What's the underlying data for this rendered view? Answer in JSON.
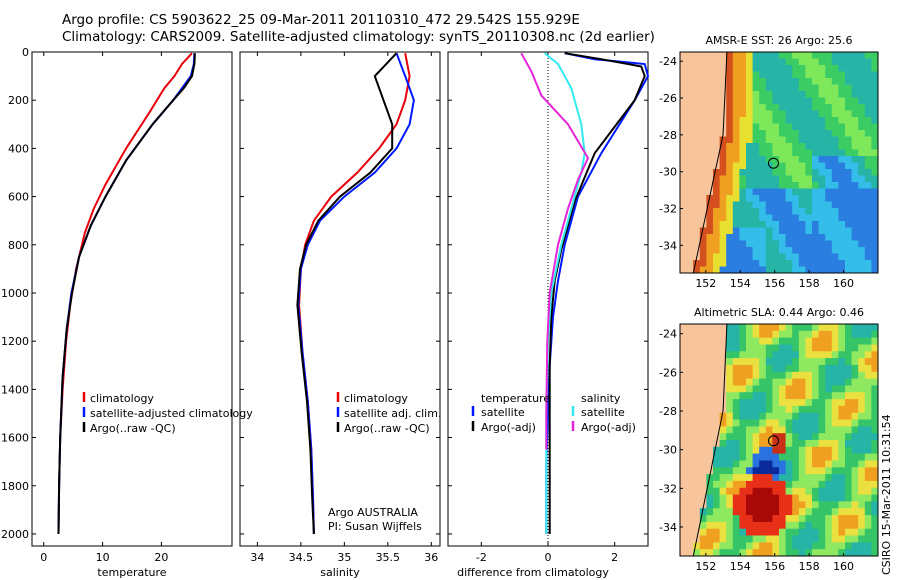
{
  "title_line1": "Argo profile: CS 5903622_25 09-Mar-2011 20110310_472 29.542S 155.929E",
  "title_line2": "Climatology: CARS2009. Satellite-adjusted climatology: synTS_20110308.nc (2d earlier)",
  "colors": {
    "red": "#e8000b",
    "blue": "#0018ff",
    "black": "#000000",
    "cyan": "#33e8ef",
    "magenta": "#e624d8",
    "land": "#f8c49c"
  },
  "chart_data": [
    {
      "type": "line",
      "panel": "temperature",
      "xlabel": "temperature",
      "xlim": [
        -2,
        32
      ],
      "ylim": [
        2050,
        0
      ],
      "xticks": [
        0,
        10,
        20
      ],
      "yticks": [
        0,
        200,
        400,
        600,
        800,
        1000,
        1200,
        1400,
        1600,
        1800,
        2000
      ],
      "legend": [
        "climatology",
        "satellite-adjusted climatology",
        "Argo(..raw -QC)"
      ],
      "series": [
        {
          "name": "climatology",
          "color": "red",
          "x": [
            25.2,
            23.5,
            22.2,
            20.5,
            18.0,
            14.0,
            10.5,
            8.5,
            7.0,
            5.5,
            4.5,
            3.8,
            3.2,
            2.8,
            2.6,
            2.5
          ],
          "y": [
            5,
            50,
            100,
            150,
            250,
            400,
            550,
            650,
            750,
            900,
            1050,
            1200,
            1400,
            1600,
            1800,
            2000
          ]
        },
        {
          "name": "satellite-adjusted climatology",
          "color": "blue",
          "x": [
            25.6,
            25.5,
            25.0,
            23.5,
            22.0,
            18.5,
            14.0,
            10.5,
            8.0,
            6.0,
            4.7,
            3.9,
            3.2,
            2.8,
            2.6,
            2.5
          ],
          "y": [
            5,
            50,
            100,
            150,
            200,
            300,
            450,
            600,
            720,
            850,
            1000,
            1150,
            1350,
            1600,
            1800,
            2000
          ]
        },
        {
          "name": "Argo(..raw -QC)",
          "color": "black",
          "x": [
            25.7,
            25.6,
            25.2,
            23.8,
            22.0,
            18.5,
            14.0,
            10.5,
            8.0,
            6.0,
            4.8,
            3.9,
            3.2,
            2.8,
            2.6,
            2.5
          ],
          "y": [
            5,
            50,
            100,
            150,
            200,
            300,
            450,
            600,
            720,
            850,
            1000,
            1150,
            1350,
            1600,
            1800,
            2000
          ]
        }
      ]
    },
    {
      "type": "line",
      "panel": "salinity",
      "xlabel": "salinity",
      "xlim": [
        33.8,
        36.1
      ],
      "ylim": [
        2050,
        0
      ],
      "xticks": [
        34,
        34.5,
        35,
        35.5,
        36
      ],
      "yticks": [],
      "legend": [
        "climatology",
        "satellite adj. clim.",
        "Argo(..raw -QC)"
      ],
      "annotation": [
        "Argo AUSTRALIA",
        "PI: Susan Wijffels"
      ],
      "series": [
        {
          "name": "climatology",
          "color": "red",
          "x": [
            35.7,
            35.75,
            35.7,
            35.6,
            35.4,
            35.15,
            34.85,
            34.65,
            34.55,
            34.5,
            34.48,
            34.52,
            34.58,
            34.62,
            34.64,
            34.65
          ],
          "y": [
            5,
            100,
            200,
            300,
            400,
            500,
            600,
            700,
            800,
            900,
            1050,
            1250,
            1450,
            1650,
            1850,
            2000
          ]
        },
        {
          "name": "satellite adj. clim.",
          "color": "blue",
          "x": [
            35.6,
            35.7,
            35.8,
            35.75,
            35.6,
            35.35,
            35.0,
            34.72,
            34.58,
            34.5,
            34.47,
            34.52,
            34.58,
            34.62,
            34.64,
            34.65
          ],
          "y": [
            5,
            100,
            200,
            300,
            400,
            500,
            600,
            700,
            800,
            900,
            1050,
            1250,
            1450,
            1650,
            1850,
            2000
          ]
        },
        {
          "name": "Argo(..raw -QC)",
          "color": "black",
          "x": [
            35.6,
            35.35,
            35.45,
            35.55,
            35.55,
            35.3,
            34.95,
            34.7,
            34.56,
            34.49,
            34.46,
            34.51,
            34.57,
            34.61,
            34.63,
            34.65
          ],
          "y": [
            5,
            100,
            200,
            300,
            400,
            500,
            600,
            700,
            800,
            900,
            1050,
            1250,
            1450,
            1650,
            1850,
            2000
          ]
        }
      ]
    },
    {
      "type": "line",
      "panel": "difference",
      "xlabel": "difference from climatology",
      "xlim": [
        -3.0,
        3.0
      ],
      "ylim": [
        2050,
        0
      ],
      "xticks": [
        -2,
        0,
        2
      ],
      "yticks": [],
      "legend": [
        "temperature",
        "satellite",
        "Argo(-adj)",
        "salinity",
        "satellite",
        "Argo(-adj)"
      ],
      "series": [
        {
          "name": "temperature satellite",
          "color": "blue",
          "x": [
            0.5,
            1.4,
            2.9,
            3.0,
            2.6,
            1.6,
            0.9,
            0.5,
            0.3,
            0.15,
            0.05,
            0.0,
            -0.05,
            -0.05,
            -0.05
          ],
          "y": [
            5,
            30,
            50,
            100,
            200,
            420,
            600,
            800,
            950,
            1100,
            1300,
            1500,
            1700,
            1900,
            2000
          ]
        },
        {
          "name": "temperature Argo(-adj)",
          "color": "black",
          "x": [
            0.5,
            1.6,
            2.8,
            2.9,
            2.6,
            1.4,
            0.8,
            0.4,
            0.2,
            0.1,
            0.05,
            0.05,
            0.05,
            0.05,
            0.05
          ],
          "y": [
            5,
            30,
            60,
            100,
            200,
            420,
            620,
            820,
            950,
            1100,
            1300,
            1500,
            1700,
            1900,
            2000
          ]
        },
        {
          "name": "salinity satellite",
          "color": "cyan",
          "x": [
            -0.1,
            0.3,
            0.7,
            1.0,
            1.1,
            1.0,
            0.7,
            0.4,
            0.1,
            0.0,
            -0.05,
            -0.05,
            -0.05
          ],
          "y": [
            5,
            50,
            150,
            300,
            420,
            500,
            650,
            800,
            1000,
            1200,
            1500,
            1800,
            2000
          ]
        },
        {
          "name": "salinity Argo(-adj)",
          "color": "magenta",
          "x": [
            -0.8,
            -0.5,
            -0.2,
            0.6,
            1.2,
            0.9,
            0.6,
            0.3,
            0.05,
            -0.02,
            -0.05,
            -0.05
          ],
          "y": [
            5,
            80,
            180,
            300,
            440,
            530,
            650,
            800,
            1000,
            1200,
            1500,
            1650
          ]
        }
      ]
    }
  ],
  "maps": [
    {
      "title": "AMSR-E SST: 26 Argo: 25.6",
      "lon_ticks": [
        152,
        154,
        156,
        158,
        160
      ],
      "lat_ticks": [
        -24,
        -26,
        -28,
        -30,
        -32,
        -34
      ],
      "marker": {
        "lon": 155.93,
        "lat": -29.54
      }
    },
    {
      "title": "Altimetric SLA: 0.44 Argo: 0.46",
      "lon_ticks": [
        152,
        154,
        156,
        158,
        160
      ],
      "lat_ticks": [
        -24,
        -26,
        -28,
        -30,
        -32,
        -34
      ],
      "marker": {
        "lon": 155.93,
        "lat": -29.54
      }
    }
  ],
  "footer_vertical": "CSIRO 15-Mar-2011 10:31:54"
}
